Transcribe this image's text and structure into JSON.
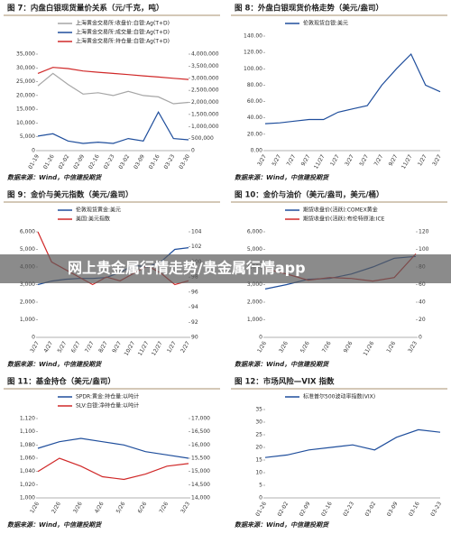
{
  "banner": "网上贵金属行情走势/贵金属行情app",
  "chart_data": [
    {
      "type": "line",
      "title": "图 7：内盘白银现货量价关系（元/千克，吨）",
      "source": "数据来源：Wind，中信建投期货",
      "categories": [
        "01-19",
        "01-26",
        "02-02",
        "02-09",
        "02-16",
        "02-23",
        "03-02",
        "03-09",
        "03-16",
        "03-23",
        "03-30"
      ],
      "series": [
        {
          "name": "上海黄金交易所:收盘价:白银:Ag(T+D)",
          "color": "#a6a6a6",
          "values": [
            23500,
            28000,
            24000,
            20500,
            21000,
            20000,
            21500,
            20000,
            19500,
            17000,
            17500
          ]
        },
        {
          "name": "上海黄金交易所:成交量:白银:Ag(T+D)",
          "color": "#1f4e9c",
          "axis": "y2",
          "values": [
            600000,
            700000,
            400000,
            300000,
            350000,
            300000,
            500000,
            400000,
            1600000,
            500000,
            450000
          ]
        },
        {
          "name": "上海黄金交易所:持仓量:白银:Ag(T+D)",
          "color": "#d02828",
          "axis": "y2",
          "values": [
            3200000,
            3450000,
            3400000,
            3300000,
            3250000,
            3200000,
            3150000,
            3100000,
            3050000,
            3000000,
            2950000
          ]
        }
      ],
      "ylim": [
        0,
        35000
      ],
      "yticks": [
        0,
        {
          "value": 5000,
          "label": "5,000"
        },
        {
          "value": 10000,
          "label": "10,000"
        },
        {
          "value": 15000,
          "label": "15,000"
        },
        {
          "value": 20000,
          "label": "20,000"
        },
        {
          "value": 25000,
          "label": "25,000"
        },
        {
          "value": 30000,
          "label": "30,000"
        },
        {
          "value": 35000,
          "label": "35,000"
        }
      ],
      "y2lim": [
        0,
        4000000
      ],
      "y2ticks": [
        0,
        {
          "value": 500000,
          "label": "500,000"
        },
        {
          "value": 1000000,
          "label": "1,000,000"
        },
        {
          "value": 1500000,
          "label": "1,500,000"
        },
        {
          "value": 2000000,
          "label": "2,000,000"
        },
        {
          "value": 2500000,
          "label": "2,500,000"
        },
        {
          "value": 3000000,
          "label": "3,000,000"
        },
        {
          "value": 3500000,
          "label": "3,500,000"
        },
        {
          "value": 4000000,
          "label": "4,000,000"
        }
      ]
    },
    {
      "type": "line",
      "title": "图 8：外盘白银现货价格走势（美元/盎司）",
      "source": "数据来源：Wind，中信建投期货",
      "categories": [
        "3/27",
        "5/27",
        "7/27",
        "9/27",
        "11/27",
        "1/27",
        "3/27",
        "5/27",
        "7/27",
        "9/27",
        "11/27",
        "1/27",
        "3/27"
      ],
      "series": [
        {
          "name": "伦敦现货白银:美元",
          "color": "#1f4e9c",
          "values": [
            33,
            34,
            36,
            38,
            38,
            47,
            51,
            55,
            80,
            100,
            118,
            80,
            72
          ]
        }
      ],
      "ylim": [
        0,
        140
      ],
      "yticks": [
        {
          "value": 0,
          "label": "0.00"
        },
        {
          "value": 20,
          "label": "20.00"
        },
        {
          "value": 40,
          "label": "40.00"
        },
        {
          "value": 60,
          "label": "60.00"
        },
        {
          "value": 80,
          "label": "80.00"
        },
        {
          "value": 100,
          "label": "100.00"
        },
        {
          "value": 120,
          "label": "120.00"
        },
        {
          "value": 140,
          "label": "140.00"
        }
      ]
    },
    {
      "type": "line",
      "title": "图 9：金价与美元指数（美元/盎司）",
      "source": "数据来源：Wind，中信建投期货",
      "categories": [
        "3/27",
        "4/27",
        "5/27",
        "6/27",
        "7/27",
        "8/27",
        "9/27",
        "10/27",
        "11/27",
        "12/27",
        "1/27",
        "2/27"
      ],
      "series": [
        {
          "name": "伦敦现货黄金:美元",
          "color": "#1f4e9c",
          "values": [
            3000,
            3200,
            3300,
            3350,
            3350,
            3400,
            3700,
            4100,
            4000,
            4300,
            5000,
            5100
          ]
        },
        {
          "name": "美国:美元指数",
          "color": "#d02828",
          "axis": "y2",
          "values": [
            104,
            100,
            99,
            98,
            97,
            98,
            97.5,
            98.5,
            99.5,
            98.5,
            97,
            97.5
          ]
        }
      ],
      "ylim": [
        0,
        6000
      ],
      "yticks": [
        0,
        {
          "value": 1000,
          "label": "1,000"
        },
        {
          "value": 2000,
          "label": "2,000"
        },
        {
          "value": 3000,
          "label": "3,000"
        },
        {
          "value": 4000,
          "label": "4,000"
        },
        {
          "value": 5000,
          "label": "5,000"
        },
        {
          "value": 6000,
          "label": "6,000"
        }
      ],
      "y2lim": [
        90,
        104
      ],
      "y2ticks": [
        90,
        92,
        94,
        96,
        98,
        100,
        102,
        104
      ]
    },
    {
      "type": "line",
      "title": "图 10：金价与油价（美元/盎司，美元/桶）",
      "source": "数据来源：Wind，中信建投期货",
      "categories": [
        "1/26",
        "3/26",
        "5/26",
        "7/26",
        "9/26",
        "11/26",
        "1/26",
        "3/23"
      ],
      "series": [
        {
          "name": "期货收盘价(活跃):COMEX黄金",
          "color": "#1f4e9c",
          "values": [
            2750,
            3000,
            3300,
            3350,
            3600,
            4000,
            4500,
            4600
          ]
        },
        {
          "name": "期货收盘价(活跃):布伦特原油:ICE",
          "color": "#d02828",
          "axis": "y2",
          "values": [
            78,
            72,
            65,
            68,
            67,
            64,
            68,
            95
          ]
        }
      ],
      "ylim": [
        0,
        6000
      ],
      "yticks": [
        0,
        {
          "value": 1000,
          "label": "1,000"
        },
        {
          "value": 2000,
          "label": "2,000"
        },
        {
          "value": 3000,
          "label": "3,000"
        },
        {
          "value": 4000,
          "label": "4,000"
        },
        {
          "value": 5000,
          "label": "5,000"
        },
        {
          "value": 6000,
          "label": "6,000"
        }
      ],
      "y2lim": [
        0,
        120
      ],
      "y2ticks": [
        0,
        20,
        40,
        60,
        80,
        100,
        120
      ]
    },
    {
      "type": "line",
      "title": "图 11：基金持仓（美元/盎司）",
      "source": "数据来源：Wind，中信建投期货",
      "categories": [
        "1/26",
        "2/26",
        "3/26",
        "4/26",
        "5/26",
        "6/26",
        "7/26",
        "3/23"
      ],
      "series": [
        {
          "name": "SPDR:黄金:持仓量:以吨计",
          "color": "#1f4e9c",
          "values": [
            1075,
            1085,
            1090,
            1085,
            1080,
            1070,
            1065,
            1060
          ]
        },
        {
          "name": "SLV:白银:净持仓量:以吨计",
          "color": "#d02828",
          "axis": "y2",
          "values": [
            15000,
            15500,
            15200,
            14800,
            14700,
            14900,
            15200,
            15300
          ]
        }
      ],
      "ylim": [
        1000,
        1120
      ],
      "yticks": [
        {
          "value": 1000,
          "label": "1,000"
        },
        {
          "value": 1020,
          "label": "1,020"
        },
        {
          "value": 1040,
          "label": "1,040"
        },
        {
          "value": 1060,
          "label": "1,060"
        },
        {
          "value": 1080,
          "label": "1,080"
        },
        {
          "value": 1100,
          "label": "1,100"
        },
        {
          "value": 1120,
          "label": "1,120"
        }
      ],
      "y2lim": [
        14000,
        17000
      ],
      "y2ticks": [
        {
          "value": 14000,
          "label": "14,000"
        },
        {
          "value": 14500,
          "label": "14,500"
        },
        {
          "value": 15000,
          "label": "15,000"
        },
        {
          "value": 15500,
          "label": "15,500"
        },
        {
          "value": 16000,
          "label": "16,000"
        },
        {
          "value": 16500,
          "label": "16,500"
        },
        {
          "value": 17000,
          "label": "17,000"
        }
      ]
    },
    {
      "type": "line",
      "title": "图 12：市场风险—VIX 指数",
      "source": "数据来源：Wind，中信建投期货",
      "categories": [
        "01-26",
        "02-02",
        "02-09",
        "02-16",
        "02-23",
        "03-02",
        "03-09",
        "03-16",
        "03-23"
      ],
      "series": [
        {
          "name": "标准普尔500波动率指数(VIX)",
          "color": "#1f4e9c",
          "values": [
            16,
            17,
            19,
            20,
            21,
            19,
            24,
            27,
            26
          ]
        }
      ],
      "ylim": [
        0,
        35
      ],
      "yticks": [
        0,
        5,
        10,
        15,
        20,
        25,
        30,
        35
      ]
    }
  ]
}
